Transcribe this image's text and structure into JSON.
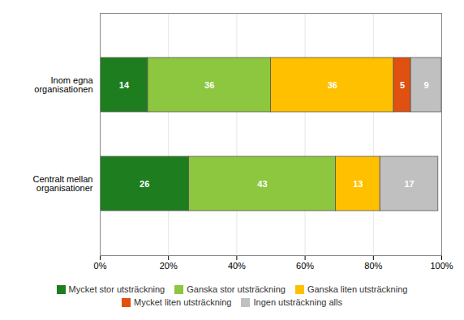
{
  "chart_data": {
    "type": "bar",
    "orientation": "horizontal",
    "stacked": true,
    "data_labels": true,
    "grid": true,
    "legend": "bottom",
    "categories": [
      "Inom egna\norganisationen",
      "Centralt mellan\norganisationer"
    ],
    "series": [
      {
        "name": "Mycket stor utsträckning",
        "color": "#1e7d1e",
        "values": [
          14,
          26
        ]
      },
      {
        "name": "Ganska stor utsträckning",
        "color": "#8dc63f",
        "values": [
          36,
          43
        ]
      },
      {
        "name": "Ganska liten utsträckning",
        "color": "#ffc000",
        "values": [
          36,
          13
        ]
      },
      {
        "name": "Mycket liten utsträckning",
        "color": "#e05010",
        "values": [
          5,
          0
        ]
      },
      {
        "name": "Ingen utsträckning alls",
        "color": "#c0c0c0",
        "values": [
          9,
          17
        ]
      }
    ],
    "xlim": [
      0,
      100
    ],
    "xticks": [
      {
        "value": 0,
        "label": "0%"
      },
      {
        "value": 20,
        "label": "20%"
      },
      {
        "value": 40,
        "label": "40%"
      },
      {
        "value": 60,
        "label": "60%"
      },
      {
        "value": 80,
        "label": "80%"
      },
      {
        "value": 100,
        "label": "100%"
      }
    ]
  }
}
